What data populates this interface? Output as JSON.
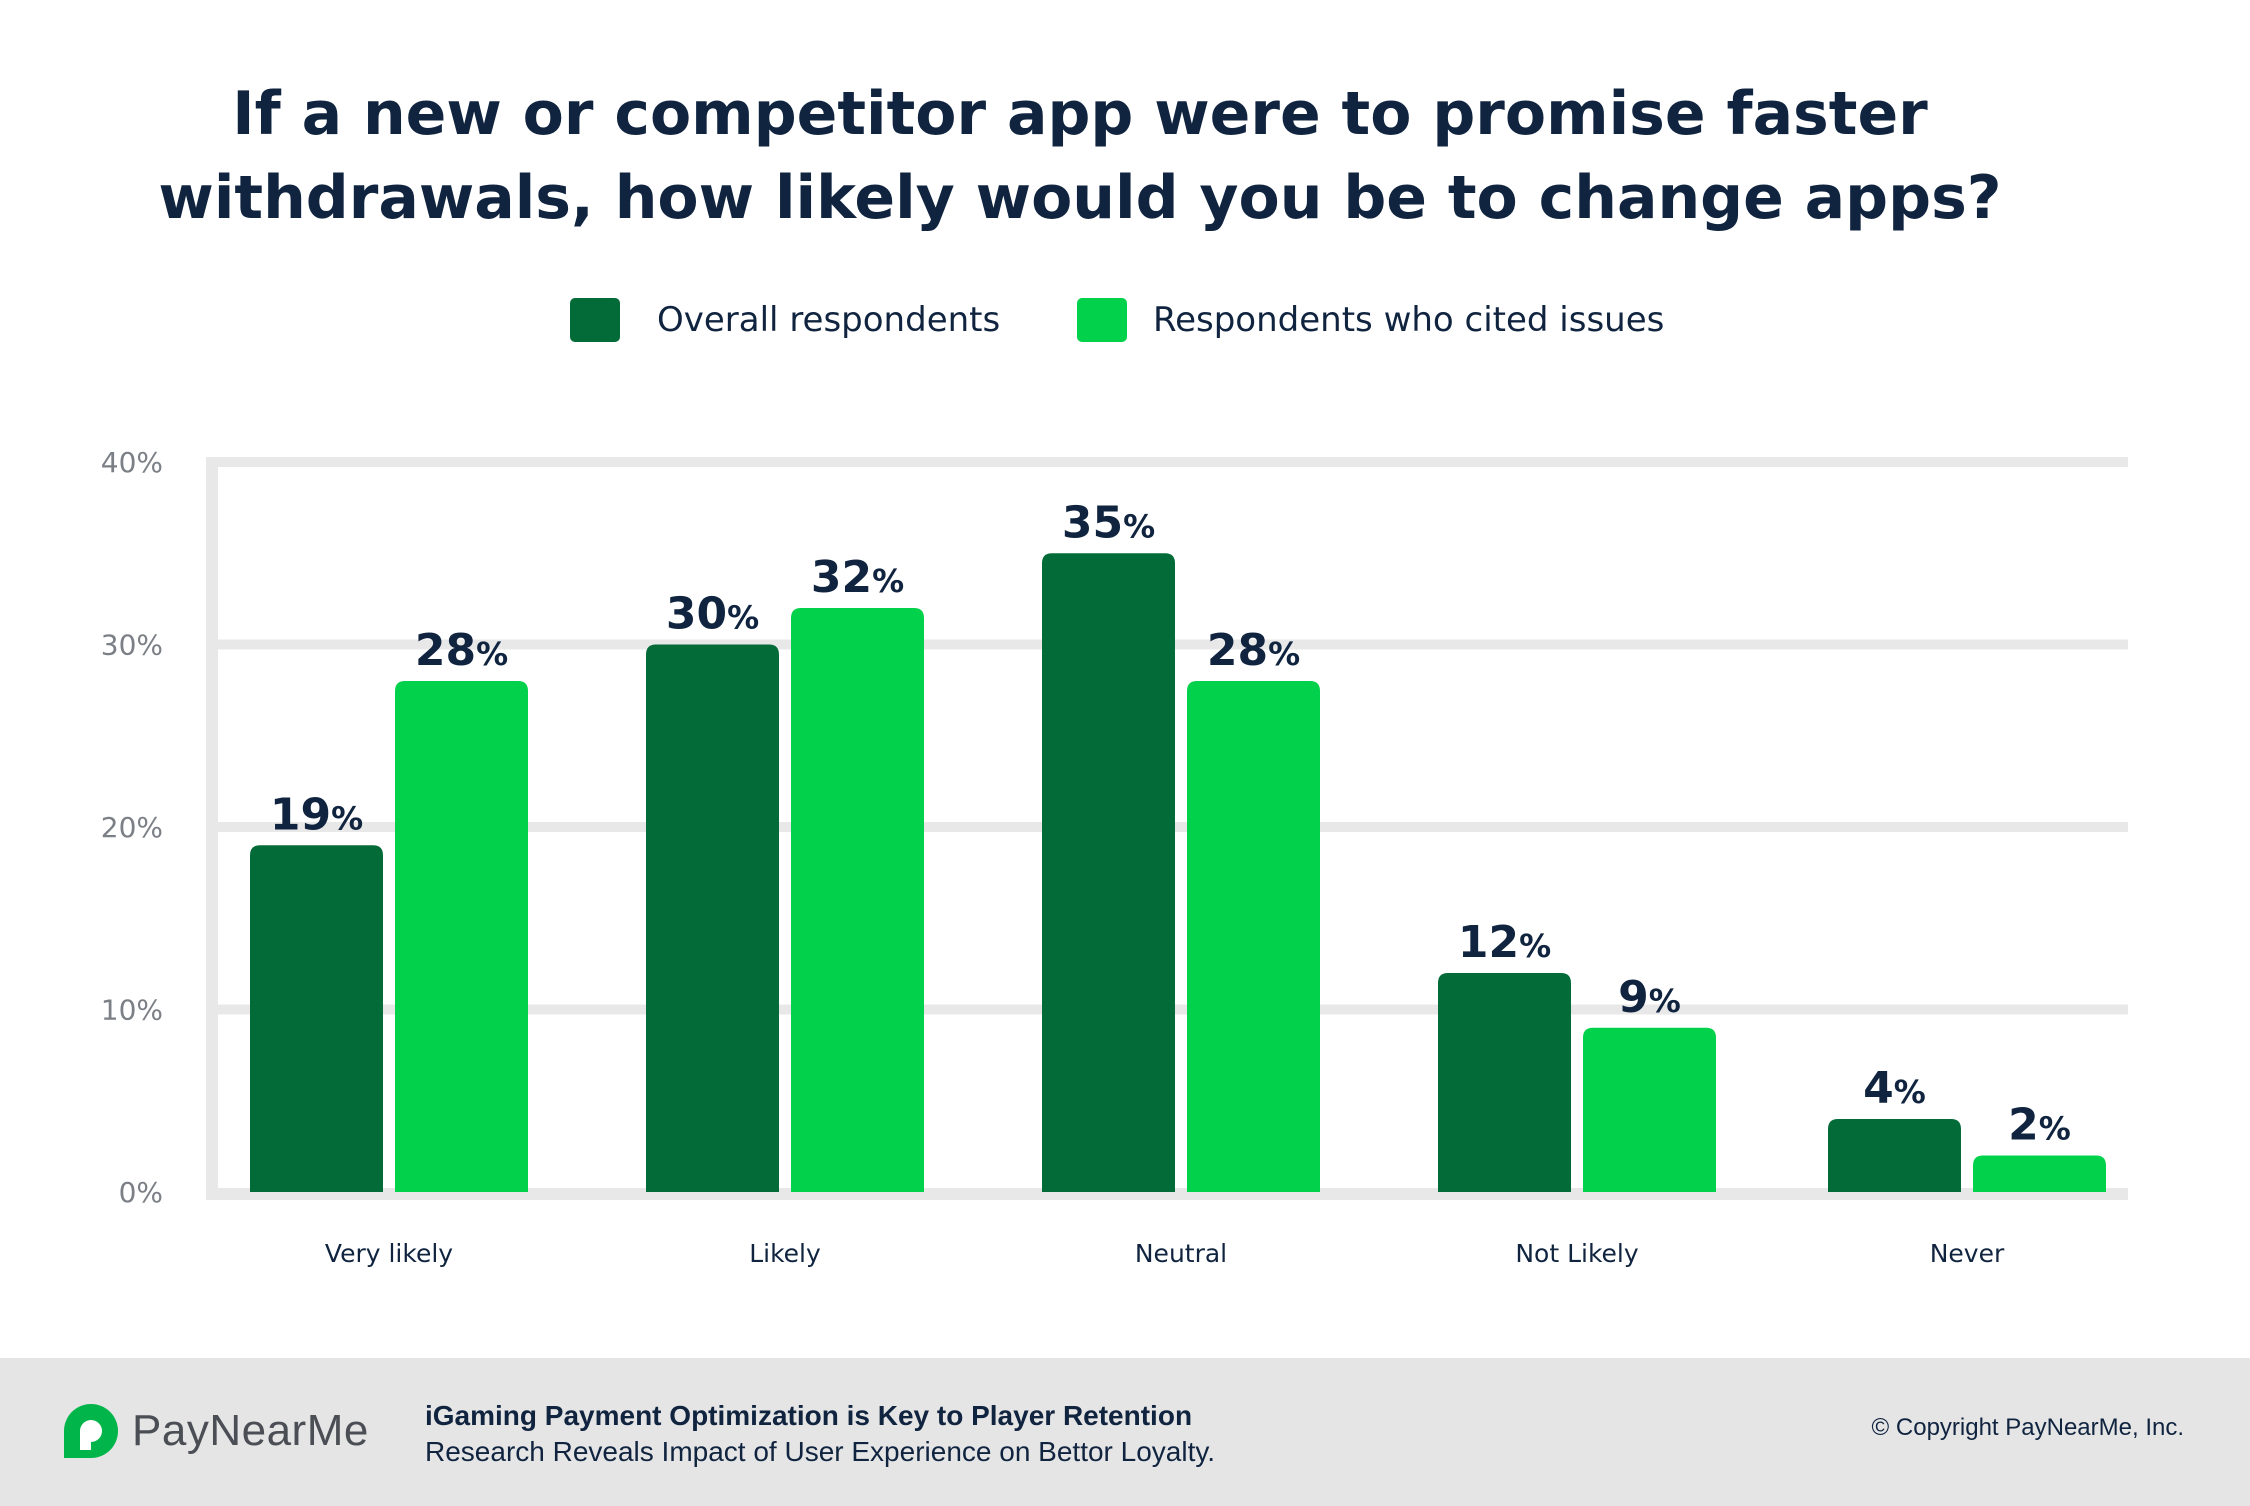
{
  "chart_data": {
    "type": "bar",
    "title_lines": [
      "If a new or competitor app were to promise faster",
      "withdrawals, how likely would you be to change apps?"
    ],
    "categories": [
      "Very likely",
      "Likely",
      "Neutral",
      "Not Likely",
      "Never"
    ],
    "series": [
      {
        "name": "Overall respondents",
        "values": [
          19,
          30,
          35,
          12,
          4
        ],
        "color": "#036b38"
      },
      {
        "name": "Respondents who cited issues",
        "values": [
          28,
          32,
          28,
          9,
          2
        ],
        "color": "#02d14c"
      }
    ],
    "value_suffix": "%",
    "ylim": [
      0,
      40
    ],
    "yticks": [
      {
        "value": 0,
        "label": "0%"
      },
      {
        "value": 10,
        "label": "10%"
      },
      {
        "value": 20,
        "label": "20%"
      },
      {
        "value": 30,
        "label": "30%"
      },
      {
        "value": 40,
        "label": "40%"
      }
    ],
    "grid": true,
    "legend_position": "top-center",
    "colors": {
      "grid": "#e8e8e8",
      "text": "#10243f",
      "axis_text": "#7b7f86"
    }
  },
  "footer": {
    "brand": "PayNearMe",
    "logo_color": "#02b54a",
    "headline": "iGaming Payment Optimization is Key to Player Retention",
    "subline": "Research Reveals Impact of User Experience on Bettor Loyalty.",
    "copyright": "© Copyright PayNearMe, Inc."
  }
}
